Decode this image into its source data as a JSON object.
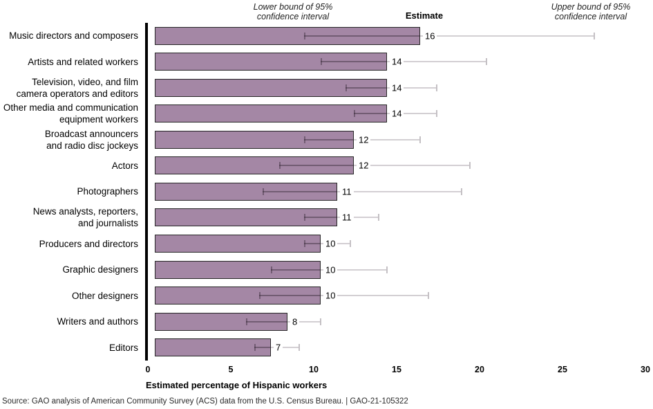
{
  "chart": {
    "header_lower": "Lower bound of 95%\nconfidence interval",
    "header_estimate": "Estimate",
    "header_upper": "Upper bound of 95%\nconfidence interval"
  },
  "footer": {
    "source": "Source: GAO analysis of American Community Survey (ACS) data from the U.S. Census Bureau.  |  GAO-21-105322"
  },
  "chart_data": {
    "type": "bar",
    "orientation": "horizontal",
    "xlabel": "Estimated percentage of Hispanic workers",
    "xlim": [
      0,
      30
    ],
    "xticks": [
      0,
      5,
      10,
      15,
      20,
      25,
      30
    ],
    "grid": false,
    "categories": [
      "Music directors and composers",
      "Artists and related workers",
      "Television, video, and film\ncamera operators and editors",
      "Other media and communication\nequipment workers",
      "Broadcast announcers\nand radio disc jockeys",
      "Actors",
      "Photographers",
      "News analysts, reporters,\nand journalists",
      "Producers and directors",
      "Graphic designers",
      "Other designers",
      "Writers and authors",
      "Editors"
    ],
    "series": [
      {
        "name": "Estimate",
        "values": [
          16,
          14,
          14,
          14,
          12,
          12,
          11,
          11,
          10,
          10,
          10,
          8,
          7
        ]
      },
      {
        "name": "Lower bound of 95% confidence interval",
        "values": [
          9,
          10,
          11.5,
          12,
          9,
          7.5,
          6.5,
          9,
          9,
          7,
          6.3,
          5.5,
          6
        ]
      },
      {
        "name": "Upper bound of 95% confidence interval",
        "values": [
          26.5,
          20,
          17,
          17,
          16,
          19,
          18.5,
          13.5,
          11.8,
          14,
          16.5,
          10,
          8.7
        ]
      }
    ],
    "value_labels": [
      "16",
      "14",
      "14",
      "14",
      "12",
      "12",
      "11",
      "11",
      "10",
      "10",
      "10",
      "8",
      "7"
    ],
    "colors": {
      "bar_fill": "#a487a5",
      "bar_border": "#262626",
      "ci_line_outer": "#d3cfd3",
      "ci_cap_outer": "#c4c0c4",
      "ci_inner": "rgba(40,28,40,0.40)",
      "axis_line": "#000000"
    }
  }
}
